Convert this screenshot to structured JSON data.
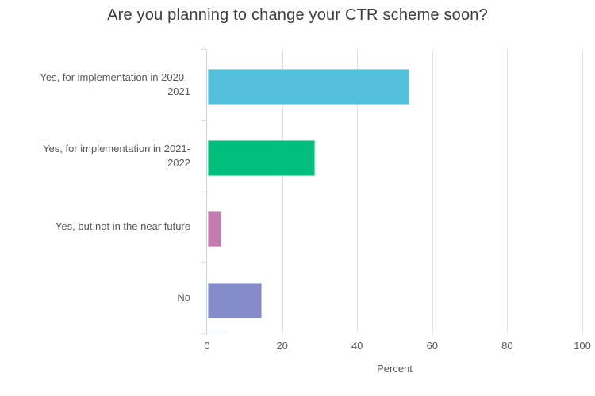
{
  "title": "Are you planning to change your CTR scheme soon?",
  "chart_data": {
    "type": "bar",
    "orientation": "horizontal",
    "title": "Are you planning to change your CTR scheme soon?",
    "categories": [
      "Yes, for implementation in 2020 - 2021",
      "Yes, for implementation in 2021- 2022",
      "Yes, but not in the near future",
      "No"
    ],
    "category_lines": [
      [
        "Yes, for implementation in 2020 -",
        "2021"
      ],
      [
        "Yes, for implementation in 2021-",
        "2022"
      ],
      [
        "Yes, but not in the near future"
      ],
      [
        "No"
      ]
    ],
    "values": [
      53.6,
      28.6,
      3.6,
      14.3
    ],
    "bar_colors": [
      "#53c0dc",
      "#00bf7d",
      "#c67ab1",
      "#858ac8"
    ],
    "xlabel": "Percent",
    "xlim": [
      0,
      100
    ],
    "xticks": [
      0,
      20,
      40,
      60,
      80,
      100
    ],
    "grid": true,
    "legend": false
  },
  "colors": {
    "background": "#ffffff",
    "gridline": "#e2e2e2",
    "axis_line": "#c3d2e7",
    "title_text": "#3c3c3c",
    "label_text": "#595959"
  }
}
